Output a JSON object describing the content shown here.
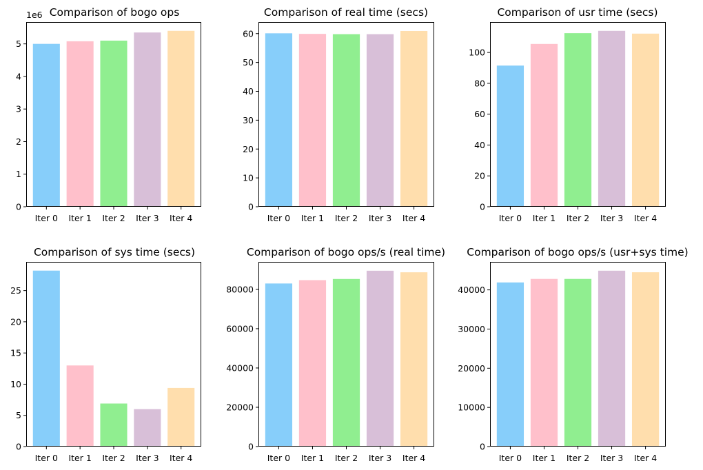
{
  "chart_data": [
    {
      "type": "bar",
      "title": "Comparison of bogo ops",
      "categories": [
        "Iter 0",
        "Iter 1",
        "Iter 2",
        "Iter 3",
        "Iter 4"
      ],
      "values": [
        5000000,
        5080000,
        5100000,
        5350000,
        5400000
      ],
      "colors": [
        "#87CEFA",
        "#FFC0CB",
        "#90EE90",
        "#D8BFD8",
        "#FFDEAD"
      ],
      "ylim": [
        0,
        5670000
      ],
      "yticks": [
        0,
        1000000,
        2000000,
        3000000,
        4000000,
        5000000
      ],
      "ytick_labels": [
        "0",
        "1",
        "2",
        "3",
        "4",
        "5"
      ],
      "offset_text": "1e6",
      "grid": false
    },
    {
      "type": "bar",
      "title": "Comparison of real time (secs)",
      "categories": [
        "Iter 0",
        "Iter 1",
        "Iter 2",
        "Iter 3",
        "Iter 4"
      ],
      "values": [
        60.1,
        59.9,
        59.8,
        59.8,
        60.9
      ],
      "colors": [
        "#87CEFA",
        "#FFC0CB",
        "#90EE90",
        "#D8BFD8",
        "#FFDEAD"
      ],
      "ylim": [
        0,
        64
      ],
      "yticks": [
        0,
        10,
        20,
        30,
        40,
        50,
        60
      ],
      "ytick_labels": [
        "0",
        "10",
        "20",
        "30",
        "40",
        "50",
        "60"
      ],
      "grid": false
    },
    {
      "type": "bar",
      "title": "Comparison of usr time (secs)",
      "categories": [
        "Iter 0",
        "Iter 1",
        "Iter 2",
        "Iter 3",
        "Iter 4"
      ],
      "values": [
        91.5,
        105.5,
        112.5,
        114,
        112.2
      ],
      "colors": [
        "#87CEFA",
        "#FFC0CB",
        "#90EE90",
        "#D8BFD8",
        "#FFDEAD"
      ],
      "ylim": [
        0,
        119.7
      ],
      "yticks": [
        0,
        20,
        40,
        60,
        80,
        100
      ],
      "ytick_labels": [
        "0",
        "20",
        "40",
        "60",
        "80",
        "100"
      ],
      "grid": false
    },
    {
      "type": "bar",
      "title": "Comparison of sys time (secs)",
      "categories": [
        "Iter 0",
        "Iter 1",
        "Iter 2",
        "Iter 3",
        "Iter 4"
      ],
      "values": [
        28.2,
        13,
        6.9,
        6,
        9.4
      ],
      "colors": [
        "#87CEFA",
        "#FFC0CB",
        "#90EE90",
        "#D8BFD8",
        "#FFDEAD"
      ],
      "ylim": [
        0,
        29.6
      ],
      "yticks": [
        0,
        5,
        10,
        15,
        20,
        25
      ],
      "ytick_labels": [
        "0",
        "5",
        "10",
        "15",
        "20",
        "25"
      ],
      "grid": false
    },
    {
      "type": "bar",
      "title": "Comparison of bogo ops/s (real time)",
      "categories": [
        "Iter 0",
        "Iter 1",
        "Iter 2",
        "Iter 3",
        "Iter 4"
      ],
      "values": [
        83000,
        84700,
        85300,
        89500,
        88700
      ],
      "colors": [
        "#87CEFA",
        "#FFC0CB",
        "#90EE90",
        "#D8BFD8",
        "#FFDEAD"
      ],
      "ylim": [
        0,
        94000
      ],
      "yticks": [
        0,
        20000,
        40000,
        60000,
        80000
      ],
      "ytick_labels": [
        "0",
        "20000",
        "40000",
        "60000",
        "80000"
      ],
      "grid": false
    },
    {
      "type": "bar",
      "title": "Comparison of bogo ops/s (usr+sys time)",
      "categories": [
        "Iter 0",
        "Iter 1",
        "Iter 2",
        "Iter 3",
        "Iter 4"
      ],
      "values": [
        41900,
        42800,
        42800,
        44900,
        44500
      ],
      "colors": [
        "#87CEFA",
        "#FFC0CB",
        "#90EE90",
        "#D8BFD8",
        "#FFDEAD"
      ],
      "ylim": [
        0,
        47150
      ],
      "yticks": [
        0,
        10000,
        20000,
        30000,
        40000
      ],
      "ytick_labels": [
        "0",
        "10000",
        "20000",
        "30000",
        "40000"
      ],
      "grid": false
    }
  ]
}
